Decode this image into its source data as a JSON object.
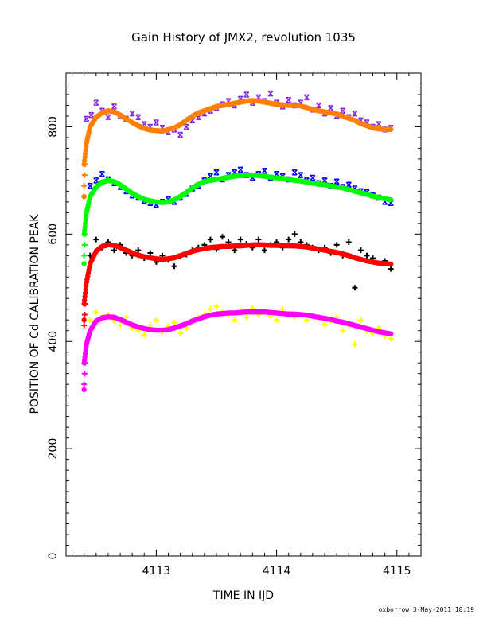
{
  "chart_data": {
    "type": "scatter",
    "title": "Gain History of JMX2, revolution 1035",
    "xlabel": "TIME IN IJD",
    "ylabel": "POSITION OF Cd CALIBRATION PEAK",
    "xlim": [
      4112.25,
      4115.2
    ],
    "ylim": [
      0,
      900
    ],
    "x_ticks": [
      4113,
      4114,
      4115
    ],
    "y_ticks": [
      0,
      200,
      400,
      600,
      800
    ],
    "grid": false,
    "footer": "oxborrow  3-May-2011 18:19",
    "series": [
      {
        "kind": "raw",
        "color": "#8a2be2",
        "marker": "x",
        "x": [
          4112.42,
          4112.46,
          4112.5,
          4112.55,
          4112.6,
          4112.65,
          4112.7,
          4112.75,
          4112.8,
          4112.85,
          4112.9,
          4112.95,
          4113.0,
          4113.05,
          4113.1,
          4113.15,
          4113.2,
          4113.25,
          4113.3,
          4113.35,
          4113.4,
          4113.45,
          4113.5,
          4113.55,
          4113.6,
          4113.65,
          4113.7,
          4113.75,
          4113.8,
          4113.85,
          4113.9,
          4113.95,
          4114.0,
          4114.05,
          4114.1,
          4114.15,
          4114.2,
          4114.25,
          4114.3,
          4114.35,
          4114.4,
          4114.45,
          4114.5,
          4114.55,
          4114.6,
          4114.65,
          4114.7,
          4114.75,
          4114.8,
          4114.85,
          4114.9,
          4114.95
        ],
        "y": [
          815,
          822,
          845,
          830,
          818,
          838,
          820,
          815,
          825,
          818,
          805,
          800,
          808,
          798,
          790,
          795,
          785,
          800,
          812,
          818,
          825,
          830,
          835,
          842,
          848,
          840,
          852,
          860,
          845,
          855,
          848,
          862,
          845,
          838,
          850,
          840,
          845,
          855,
          832,
          840,
          825,
          835,
          820,
          830,
          818,
          825,
          812,
          808,
          800,
          805,
          795,
          798
        ]
      },
      {
        "kind": "fit",
        "color": "#ff7f00",
        "marker": "o",
        "x": [
          4112.4,
          4112.42,
          4112.45,
          4112.5,
          4112.55,
          4112.6,
          4112.65,
          4112.7,
          4112.75,
          4112.8,
          4112.85,
          4112.9,
          4112.95,
          4113.0,
          4113.05,
          4113.1,
          4113.15,
          4113.2,
          4113.25,
          4113.3,
          4113.35,
          4113.4,
          4113.45,
          4113.5,
          4113.55,
          4113.6,
          4113.65,
          4113.7,
          4113.75,
          4113.8,
          4113.85,
          4113.9,
          4113.95,
          4114.0,
          4114.05,
          4114.1,
          4114.15,
          4114.2,
          4114.25,
          4114.3,
          4114.35,
          4114.4,
          4114.45,
          4114.5,
          4114.55,
          4114.6,
          4114.65,
          4114.7,
          4114.75,
          4114.8,
          4114.85,
          4114.9,
          4114.95
        ],
        "y": [
          730,
          770,
          800,
          818,
          826,
          830,
          828,
          822,
          815,
          808,
          802,
          797,
          794,
          793,
          792,
          795,
          798,
          804,
          812,
          820,
          826,
          830,
          834,
          838,
          840,
          842,
          844,
          846,
          848,
          849,
          848,
          846,
          844,
          842,
          841,
          840,
          840,
          839,
          836,
          832,
          830,
          828,
          826,
          824,
          820,
          816,
          812,
          806,
          802,
          798,
          796,
          795,
          795
        ]
      },
      {
        "kind": "raw",
        "color": "#0000ff",
        "marker": "x",
        "x": [
          4112.45,
          4112.5,
          4112.55,
          4112.6,
          4112.65,
          4112.7,
          4112.75,
          4112.8,
          4112.85,
          4112.9,
          4112.95,
          4113.0,
          4113.05,
          4113.1,
          4113.15,
          4113.2,
          4113.25,
          4113.3,
          4113.35,
          4113.4,
          4113.45,
          4113.5,
          4113.55,
          4113.6,
          4113.65,
          4113.7,
          4113.75,
          4113.8,
          4113.85,
          4113.9,
          4113.95,
          4114.0,
          4114.05,
          4114.1,
          4114.15,
          4114.2,
          4114.25,
          4114.3,
          4114.35,
          4114.4,
          4114.45,
          4114.5,
          4114.55,
          4114.6,
          4114.65,
          4114.7,
          4114.75,
          4114.8,
          4114.85,
          4114.9,
          4114.95
        ],
        "y": [
          690,
          700,
          712,
          702,
          695,
          688,
          680,
          672,
          668,
          662,
          658,
          655,
          660,
          665,
          660,
          668,
          675,
          685,
          690,
          700,
          708,
          715,
          702,
          710,
          715,
          720,
          710,
          705,
          712,
          718,
          705,
          712,
          708,
          702,
          715,
          710,
          700,
          705,
          695,
          700,
          690,
          698,
          688,
          692,
          685,
          680,
          678,
          672,
          668,
          660,
          658
        ]
      },
      {
        "kind": "fit",
        "color": "#00ff00",
        "marker": "o",
        "x": [
          4112.4,
          4112.42,
          4112.45,
          4112.5,
          4112.55,
          4112.6,
          4112.65,
          4112.7,
          4112.75,
          4112.8,
          4112.85,
          4112.9,
          4112.95,
          4113.0,
          4113.05,
          4113.1,
          4113.15,
          4113.2,
          4113.25,
          4113.3,
          4113.35,
          4113.4,
          4113.45,
          4113.5,
          4113.55,
          4113.6,
          4113.65,
          4113.7,
          4113.75,
          4113.8,
          4113.85,
          4113.9,
          4113.95,
          4114.0,
          4114.05,
          4114.1,
          4114.15,
          4114.2,
          4114.25,
          4114.3,
          4114.35,
          4114.4,
          4114.45,
          4114.5,
          4114.55,
          4114.6,
          4114.65,
          4114.7,
          4114.75,
          4114.8,
          4114.85,
          4114.9,
          4114.95
        ],
        "y": [
          600,
          640,
          670,
          688,
          697,
          700,
          698,
          692,
          684,
          676,
          670,
          665,
          662,
          660,
          659,
          660,
          664,
          670,
          678,
          686,
          693,
          698,
          700,
          702,
          704,
          706,
          708,
          709,
          710,
          710,
          709,
          708,
          706,
          705,
          704,
          702,
          700,
          699,
          697,
          695,
          693,
          692,
          690,
          688,
          686,
          683,
          680,
          677,
          674,
          671,
          668,
          666,
          664
        ]
      },
      {
        "kind": "raw",
        "color": "#000000",
        "marker": "+",
        "x": [
          4112.45,
          4112.5,
          4112.55,
          4112.6,
          4112.65,
          4112.7,
          4112.75,
          4112.8,
          4112.85,
          4112.9,
          4112.95,
          4113.0,
          4113.05,
          4113.1,
          4113.15,
          4113.2,
          4113.25,
          4113.3,
          4113.35,
          4113.4,
          4113.45,
          4113.5,
          4113.55,
          4113.6,
          4113.65,
          4113.7,
          4113.75,
          4113.8,
          4113.85,
          4113.9,
          4113.95,
          4114.0,
          4114.05,
          4114.1,
          4114.15,
          4114.2,
          4114.25,
          4114.3,
          4114.35,
          4114.4,
          4114.45,
          4114.5,
          4114.55,
          4114.6,
          4114.65,
          4114.7,
          4114.75,
          4114.8,
          4114.85,
          4114.9,
          4114.95
        ],
        "y": [
          560,
          590,
          575,
          585,
          570,
          580,
          565,
          560,
          570,
          555,
          565,
          548,
          560,
          552,
          540,
          558,
          562,
          570,
          575,
          580,
          590,
          572,
          595,
          585,
          570,
          590,
          582,
          575,
          590,
          570,
          580,
          585,
          575,
          590,
          600,
          585,
          580,
          575,
          570,
          575,
          565,
          580,
          560,
          585,
          500,
          570,
          560,
          555,
          545,
          550,
          535
        ]
      },
      {
        "kind": "fit",
        "color": "#ff0000",
        "marker": "o",
        "x": [
          4112.4,
          4112.42,
          4112.45,
          4112.5,
          4112.55,
          4112.6,
          4112.65,
          4112.7,
          4112.75,
          4112.8,
          4112.85,
          4112.9,
          4112.95,
          4113.0,
          4113.05,
          4113.1,
          4113.15,
          4113.2,
          4113.25,
          4113.3,
          4113.35,
          4113.4,
          4113.45,
          4113.5,
          4113.55,
          4113.6,
          4113.65,
          4113.7,
          4113.75,
          4113.8,
          4113.85,
          4113.9,
          4113.95,
          4114.0,
          4114.05,
          4114.1,
          4114.15,
          4114.2,
          4114.25,
          4114.3,
          4114.35,
          4114.4,
          4114.45,
          4114.5,
          4114.55,
          4114.6,
          4114.65,
          4114.7,
          4114.75,
          4114.8,
          4114.85,
          4114.9,
          4114.95
        ],
        "y": [
          470,
          510,
          545,
          568,
          577,
          580,
          579,
          575,
          570,
          565,
          561,
          558,
          556,
          554,
          553,
          554,
          556,
          560,
          564,
          568,
          571,
          573,
          575,
          576,
          577,
          577,
          578,
          578,
          579,
          580,
          580,
          580,
          579,
          579,
          579,
          578,
          578,
          577,
          576,
          574,
          572,
          570,
          568,
          566,
          563,
          560,
          556,
          553,
          550,
          548,
          546,
          545,
          544
        ]
      },
      {
        "kind": "raw",
        "color": "#ffff00",
        "marker": "+",
        "x": [
          4112.45,
          4112.5,
          4112.55,
          4112.6,
          4112.65,
          4112.7,
          4112.75,
          4112.8,
          4112.85,
          4112.9,
          4112.95,
          4113.0,
          4113.05,
          4113.1,
          4113.15,
          4113.2,
          4113.25,
          4113.3,
          4113.35,
          4113.4,
          4113.45,
          4113.5,
          4113.55,
          4113.6,
          4113.65,
          4113.7,
          4113.75,
          4113.8,
          4113.85,
          4113.9,
          4113.95,
          4114.0,
          4114.05,
          4114.1,
          4114.15,
          4114.2,
          4114.25,
          4114.3,
          4114.35,
          4114.4,
          4114.45,
          4114.5,
          4114.55,
          4114.6,
          4114.65,
          4114.7,
          4114.75,
          4114.8,
          4114.85,
          4114.9,
          4114.95
        ],
        "y": [
          440,
          455,
          445,
          450,
          438,
          430,
          445,
          425,
          420,
          412,
          430,
          440,
          418,
          428,
          435,
          415,
          425,
          440,
          445,
          450,
          460,
          465,
          455,
          450,
          440,
          458,
          445,
          462,
          450,
          455,
          448,
          440,
          460,
          452,
          445,
          450,
          440,
          448,
          445,
          432,
          438,
          445,
          420,
          430,
          395,
          440,
          420,
          415,
          425,
          410,
          405
        ]
      },
      {
        "kind": "fit",
        "color": "#ff00ff",
        "marker": "o",
        "x": [
          4112.4,
          4112.42,
          4112.45,
          4112.5,
          4112.55,
          4112.6,
          4112.65,
          4112.7,
          4112.75,
          4112.8,
          4112.85,
          4112.9,
          4112.95,
          4113.0,
          4113.05,
          4113.1,
          4113.15,
          4113.2,
          4113.25,
          4113.3,
          4113.35,
          4113.4,
          4113.45,
          4113.5,
          4113.55,
          4113.6,
          4113.65,
          4113.7,
          4113.75,
          4113.8,
          4113.85,
          4113.9,
          4113.95,
          4114.0,
          4114.05,
          4114.1,
          4114.15,
          4114.2,
          4114.25,
          4114.3,
          4114.35,
          4114.4,
          4114.45,
          4114.5,
          4114.55,
          4114.6,
          4114.65,
          4114.7,
          4114.75,
          4114.8,
          4114.85,
          4114.9,
          4114.95
        ],
        "y": [
          360,
          395,
          420,
          438,
          444,
          446,
          445,
          441,
          436,
          431,
          427,
          424,
          422,
          421,
          421,
          422,
          425,
          429,
          433,
          438,
          442,
          446,
          449,
          451,
          452,
          453,
          453,
          454,
          455,
          455,
          455,
          455,
          454,
          453,
          452,
          451,
          451,
          450,
          449,
          447,
          445,
          443,
          441,
          438,
          436,
          433,
          430,
          427,
          424,
          421,
          418,
          416,
          414
        ]
      }
    ],
    "early_points": [
      {
        "x": 4112.4,
        "y": 670,
        "color": "#ff7f00"
      },
      {
        "x": 4112.4,
        "y": 545,
        "color": "#00ff00"
      },
      {
        "x": 4112.4,
        "y": 440,
        "color": "#ff0000"
      },
      {
        "x": 4112.4,
        "y": 310,
        "color": "#ff00ff"
      }
    ]
  }
}
